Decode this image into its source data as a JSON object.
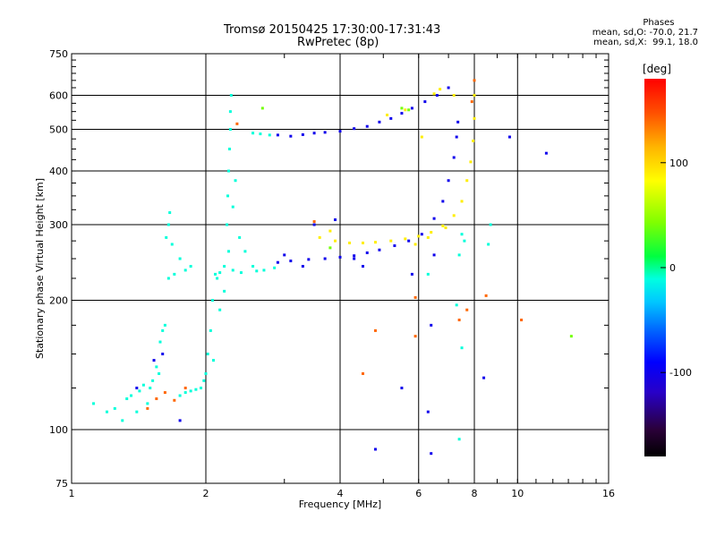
{
  "chart_data": {
    "type": "scatter",
    "title": "Tromsø 20150425 17:30:00-17:31:43",
    "subtitle": "RwPretec (8p)",
    "xlabel": "Frequency [MHz]",
    "ylabel": "Stationary phase Virtual Height [km]",
    "x_scale": "log",
    "y_scale": "log",
    "xlim": [
      1,
      16
    ],
    "ylim": [
      75,
      750
    ],
    "x_ticks": [
      "1",
      "2",
      "4",
      "6",
      "8",
      "10",
      "16"
    ],
    "y_ticks": [
      "75",
      "100",
      "200",
      "300",
      "400",
      "500",
      "600",
      "750"
    ],
    "grid": true,
    "stats": {
      "title": "Phases",
      "line_o": "mean, sd,O: -70.0, 21.7",
      "line_x": "mean, sd,X:  99.1, 18.0"
    },
    "colorbar": {
      "label": "[deg]",
      "range": [
        -180,
        180
      ],
      "ticks": [
        "100",
        "0",
        "-100"
      ],
      "tick_values": [
        100,
        0,
        -100
      ]
    },
    "series": [
      {
        "phase": -10,
        "points": [
          [
            1.12,
            115
          ],
          [
            1.2,
            110
          ],
          [
            1.25,
            112
          ],
          [
            1.3,
            105
          ],
          [
            1.33,
            118
          ],
          [
            1.36,
            120
          ],
          [
            1.4,
            110
          ],
          [
            1.42,
            123
          ],
          [
            1.45,
            127
          ],
          [
            1.48,
            115
          ],
          [
            1.5,
            125
          ],
          [
            1.52,
            130
          ],
          [
            1.55,
            140
          ],
          [
            1.57,
            135
          ],
          [
            1.58,
            160
          ],
          [
            1.6,
            170
          ],
          [
            1.62,
            175
          ],
          [
            1.65,
            225
          ],
          [
            1.7,
            230
          ],
          [
            1.75,
            250
          ],
          [
            1.63,
            280
          ],
          [
            1.65,
            300
          ],
          [
            1.66,
            320
          ],
          [
            1.68,
            270
          ],
          [
            1.8,
            235
          ],
          [
            1.85,
            240
          ],
          [
            1.75,
            120
          ],
          [
            1.8,
            122
          ],
          [
            1.85,
            123
          ],
          [
            1.9,
            124
          ],
          [
            1.95,
            125
          ],
          [
            2.0,
            135
          ],
          [
            2.02,
            150
          ],
          [
            2.05,
            170
          ],
          [
            2.07,
            200
          ],
          [
            2.1,
            230
          ],
          [
            2.12,
            225
          ],
          [
            2.15,
            232
          ],
          [
            2.2,
            240
          ],
          [
            2.25,
            260
          ],
          [
            2.23,
            300
          ],
          [
            2.24,
            350
          ],
          [
            2.25,
            400
          ],
          [
            2.26,
            450
          ],
          [
            2.27,
            500
          ],
          [
            2.27,
            550
          ],
          [
            2.28,
            600
          ],
          [
            2.3,
            330
          ],
          [
            2.33,
            380
          ],
          [
            2.38,
            280
          ],
          [
            2.45,
            260
          ],
          [
            2.55,
            240
          ],
          [
            2.7,
            235
          ],
          [
            2.85,
            238
          ],
          [
            2.3,
            235
          ],
          [
            2.4,
            232
          ],
          [
            2.6,
            234
          ],
          [
            2.2,
            210
          ],
          [
            2.15,
            190
          ],
          [
            2.55,
            490
          ],
          [
            2.65,
            488
          ],
          [
            2.78,
            485
          ],
          [
            7.5,
            285
          ],
          [
            7.6,
            275
          ],
          [
            7.4,
            255
          ],
          [
            8.7,
            300
          ],
          [
            8.6,
            270
          ],
          [
            7.3,
            195
          ],
          [
            7.5,
            155
          ],
          [
            7.4,
            95
          ],
          [
            6.3,
            230
          ],
          [
            1.98,
            130
          ],
          [
            2.08,
            145
          ]
        ]
      },
      {
        "phase": -100,
        "points": [
          [
            2.9,
            485
          ],
          [
            3.1,
            482
          ],
          [
            3.3,
            486
          ],
          [
            3.5,
            490
          ],
          [
            3.7,
            492
          ],
          [
            4.0,
            495
          ],
          [
            4.3,
            502
          ],
          [
            4.6,
            508
          ],
          [
            4.9,
            520
          ],
          [
            5.2,
            530
          ],
          [
            5.5,
            545
          ],
          [
            5.8,
            560
          ],
          [
            6.2,
            580
          ],
          [
            6.6,
            600
          ],
          [
            7.0,
            625
          ],
          [
            2.9,
            245
          ],
          [
            3.1,
            247
          ],
          [
            3.4,
            249
          ],
          [
            3.7,
            250
          ],
          [
            4.0,
            252
          ],
          [
            4.3,
            254
          ],
          [
            4.6,
            258
          ],
          [
            4.9,
            262
          ],
          [
            5.3,
            268
          ],
          [
            5.7,
            275
          ],
          [
            6.1,
            285
          ],
          [
            6.5,
            310
          ],
          [
            6.8,
            340
          ],
          [
            7.0,
            380
          ],
          [
            7.2,
            430
          ],
          [
            7.3,
            480
          ],
          [
            7.35,
            520
          ],
          [
            3.0,
            255
          ],
          [
            3.3,
            240
          ],
          [
            4.5,
            240
          ],
          [
            5.8,
            230
          ],
          [
            6.5,
            255
          ],
          [
            4.3,
            250
          ],
          [
            1.53,
            145
          ],
          [
            1.6,
            150
          ],
          [
            1.4,
            125
          ],
          [
            1.75,
            105
          ],
          [
            4.8,
            90
          ],
          [
            6.4,
            88
          ],
          [
            5.5,
            125
          ],
          [
            6.3,
            110
          ],
          [
            6.4,
            175
          ],
          [
            8.4,
            132
          ],
          [
            9.6,
            480
          ],
          [
            11.6,
            440
          ],
          [
            3.5,
            300
          ],
          [
            3.9,
            308
          ]
        ]
      },
      {
        "phase": 90,
        "points": [
          [
            3.6,
            280
          ],
          [
            3.9,
            275
          ],
          [
            4.2,
            272
          ],
          [
            4.5,
            272
          ],
          [
            4.8,
            273
          ],
          [
            5.2,
            275
          ],
          [
            5.6,
            278
          ],
          [
            6.0,
            282
          ],
          [
            6.4,
            288
          ],
          [
            6.8,
            298
          ],
          [
            7.2,
            315
          ],
          [
            7.5,
            340
          ],
          [
            7.7,
            380
          ],
          [
            7.85,
            420
          ],
          [
            7.95,
            470
          ],
          [
            8.0,
            530
          ],
          [
            8.0,
            600
          ],
          [
            5.9,
            270
          ],
          [
            6.3,
            280
          ],
          [
            6.9,
            295
          ],
          [
            5.1,
            540
          ],
          [
            5.6,
            555
          ],
          [
            6.5,
            605
          ],
          [
            6.7,
            620
          ],
          [
            7.2,
            600
          ],
          [
            3.8,
            290
          ],
          [
            6.1,
            480
          ]
        ]
      },
      {
        "phase": 140,
        "points": [
          [
            1.7,
            117
          ],
          [
            1.48,
            112
          ],
          [
            1.55,
            118
          ],
          [
            1.62,
            122
          ],
          [
            1.8,
            125
          ],
          [
            2.35,
            515
          ],
          [
            3.5,
            305
          ],
          [
            4.8,
            170
          ],
          [
            5.9,
            203
          ],
          [
            7.7,
            190
          ],
          [
            7.9,
            580
          ],
          [
            8.0,
            650
          ],
          [
            4.5,
            135
          ],
          [
            8.5,
            205
          ],
          [
            5.9,
            165
          ],
          [
            10.2,
            180
          ],
          [
            7.4,
            180
          ]
        ]
      },
      {
        "phase": 40,
        "points": [
          [
            5.5,
            560
          ],
          [
            5.7,
            555
          ],
          [
            3.8,
            265
          ],
          [
            13.2,
            165
          ],
          [
            2.68,
            560
          ]
        ]
      }
    ]
  }
}
